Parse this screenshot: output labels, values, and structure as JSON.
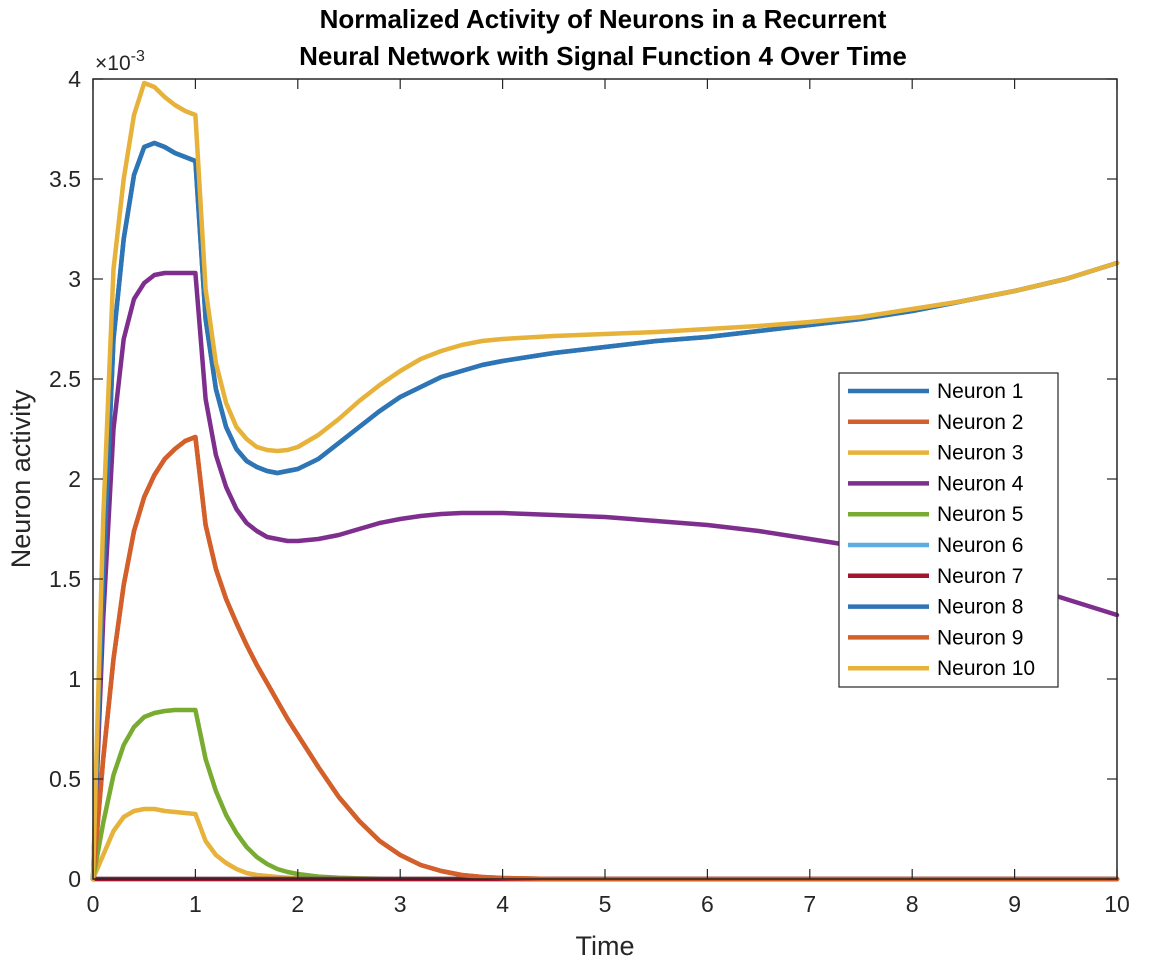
{
  "chart_data": {
    "type": "line",
    "title_lines": [
      "Normalized Activity of Neurons in a Recurrent",
      "Neural Network with Signal Function 4 Over Time"
    ],
    "xlabel": "Time",
    "ylabel": "Neuron activity",
    "y_exponent_label": "×10",
    "y_exponent_power": "-3",
    "xlim": [
      0,
      10
    ],
    "ylim": [
      0,
      4
    ],
    "y_scale_note": "values in units of 1e-3",
    "xticks": [
      "0",
      "1",
      "2",
      "3",
      "4",
      "5",
      "6",
      "7",
      "8",
      "9",
      "10"
    ],
    "yticks": [
      "0",
      "0.5",
      "1",
      "1.5",
      "2",
      "2.5",
      "3",
      "3.5",
      "4"
    ],
    "grid": false,
    "legend_position": "right",
    "series": [
      {
        "name": "Neuron 1",
        "color": "#2E75B6",
        "points": [
          [
            0,
            0
          ],
          [
            0.1,
            1.5
          ],
          [
            0.2,
            2.7
          ],
          [
            0.3,
            3.2
          ],
          [
            0.4,
            3.52
          ],
          [
            0.5,
            3.66
          ],
          [
            0.6,
            3.68
          ],
          [
            0.7,
            3.66
          ],
          [
            0.8,
            3.63
          ],
          [
            0.9,
            3.61
          ],
          [
            1.0,
            3.59
          ],
          [
            1.1,
            2.8
          ],
          [
            1.2,
            2.45
          ],
          [
            1.3,
            2.26
          ],
          [
            1.4,
            2.15
          ],
          [
            1.5,
            2.09
          ],
          [
            1.6,
            2.06
          ],
          [
            1.7,
            2.04
          ],
          [
            1.8,
            2.03
          ],
          [
            1.9,
            2.04
          ],
          [
            2.0,
            2.05
          ],
          [
            2.2,
            2.1
          ],
          [
            2.4,
            2.18
          ],
          [
            2.6,
            2.26
          ],
          [
            2.8,
            2.34
          ],
          [
            3.0,
            2.41
          ],
          [
            3.2,
            2.46
          ],
          [
            3.4,
            2.51
          ],
          [
            3.6,
            2.54
          ],
          [
            3.8,
            2.57
          ],
          [
            4.0,
            2.59
          ],
          [
            4.5,
            2.63
          ],
          [
            5.0,
            2.66
          ],
          [
            5.5,
            2.69
          ],
          [
            6.0,
            2.71
          ],
          [
            6.5,
            2.74
          ],
          [
            7.0,
            2.77
          ],
          [
            7.5,
            2.8
          ],
          [
            8.0,
            2.84
          ],
          [
            8.5,
            2.89
          ],
          [
            9.0,
            2.94
          ],
          [
            9.5,
            3.0
          ],
          [
            10.0,
            3.08
          ]
        ]
      },
      {
        "name": "Neuron 2",
        "color": "#D35F2A",
        "points": [
          [
            0,
            0
          ],
          [
            0.1,
            0.6
          ],
          [
            0.2,
            1.1
          ],
          [
            0.3,
            1.47
          ],
          [
            0.4,
            1.74
          ],
          [
            0.5,
            1.91
          ],
          [
            0.6,
            2.02
          ],
          [
            0.7,
            2.1
          ],
          [
            0.8,
            2.15
          ],
          [
            0.9,
            2.19
          ],
          [
            1.0,
            2.21
          ],
          [
            1.1,
            1.77
          ],
          [
            1.2,
            1.55
          ],
          [
            1.3,
            1.4
          ],
          [
            1.4,
            1.28
          ],
          [
            1.5,
            1.17
          ],
          [
            1.6,
            1.07
          ],
          [
            1.7,
            0.98
          ],
          [
            1.8,
            0.89
          ],
          [
            1.9,
            0.8
          ],
          [
            2.0,
            0.72
          ],
          [
            2.2,
            0.56
          ],
          [
            2.4,
            0.41
          ],
          [
            2.6,
            0.29
          ],
          [
            2.8,
            0.19
          ],
          [
            3.0,
            0.12
          ],
          [
            3.2,
            0.07
          ],
          [
            3.4,
            0.04
          ],
          [
            3.6,
            0.02
          ],
          [
            3.8,
            0.01
          ],
          [
            4.0,
            0.005
          ],
          [
            4.5,
            0.0
          ],
          [
            10.0,
            0.0
          ]
        ]
      },
      {
        "name": "Neuron 3",
        "color": "#E6B23A",
        "points": [
          [
            0,
            0
          ],
          [
            0.1,
            0.12
          ],
          [
            0.2,
            0.24
          ],
          [
            0.3,
            0.31
          ],
          [
            0.4,
            0.34
          ],
          [
            0.5,
            0.35
          ],
          [
            0.6,
            0.35
          ],
          [
            0.7,
            0.34
          ],
          [
            0.8,
            0.335
          ],
          [
            0.9,
            0.33
          ],
          [
            1.0,
            0.325
          ],
          [
            1.1,
            0.19
          ],
          [
            1.2,
            0.12
          ],
          [
            1.3,
            0.08
          ],
          [
            1.4,
            0.05
          ],
          [
            1.5,
            0.03
          ],
          [
            1.6,
            0.02
          ],
          [
            1.8,
            0.01
          ],
          [
            2.0,
            0.003
          ],
          [
            2.5,
            0.0
          ],
          [
            10.0,
            0.0
          ]
        ]
      },
      {
        "name": "Neuron 4",
        "color": "#7E2F8E",
        "points": [
          [
            0,
            0
          ],
          [
            0.1,
            1.3
          ],
          [
            0.2,
            2.25
          ],
          [
            0.3,
            2.7
          ],
          [
            0.4,
            2.9
          ],
          [
            0.5,
            2.98
          ],
          [
            0.6,
            3.02
          ],
          [
            0.7,
            3.03
          ],
          [
            0.8,
            3.03
          ],
          [
            0.9,
            3.03
          ],
          [
            1.0,
            3.03
          ],
          [
            1.1,
            2.4
          ],
          [
            1.2,
            2.12
          ],
          [
            1.3,
            1.96
          ],
          [
            1.4,
            1.85
          ],
          [
            1.5,
            1.78
          ],
          [
            1.6,
            1.74
          ],
          [
            1.7,
            1.71
          ],
          [
            1.8,
            1.7
          ],
          [
            1.9,
            1.69
          ],
          [
            2.0,
            1.69
          ],
          [
            2.2,
            1.7
          ],
          [
            2.4,
            1.72
          ],
          [
            2.6,
            1.75
          ],
          [
            2.8,
            1.78
          ],
          [
            3.0,
            1.8
          ],
          [
            3.2,
            1.815
          ],
          [
            3.4,
            1.825
          ],
          [
            3.6,
            1.83
          ],
          [
            3.8,
            1.83
          ],
          [
            4.0,
            1.83
          ],
          [
            4.5,
            1.82
          ],
          [
            5.0,
            1.81
          ],
          [
            5.5,
            1.79
          ],
          [
            6.0,
            1.77
          ],
          [
            6.5,
            1.74
          ],
          [
            7.0,
            1.7
          ],
          [
            7.5,
            1.66
          ],
          [
            8.0,
            1.61
          ],
          [
            8.5,
            1.55
          ],
          [
            9.0,
            1.48
          ],
          [
            9.5,
            1.4
          ],
          [
            10.0,
            1.32
          ]
        ]
      },
      {
        "name": "Neuron 5",
        "color": "#77AC30",
        "points": [
          [
            0,
            0
          ],
          [
            0.1,
            0.28
          ],
          [
            0.2,
            0.52
          ],
          [
            0.3,
            0.67
          ],
          [
            0.4,
            0.76
          ],
          [
            0.5,
            0.81
          ],
          [
            0.6,
            0.83
          ],
          [
            0.7,
            0.84
          ],
          [
            0.8,
            0.845
          ],
          [
            0.9,
            0.845
          ],
          [
            1.0,
            0.845
          ],
          [
            1.1,
            0.6
          ],
          [
            1.2,
            0.44
          ],
          [
            1.3,
            0.32
          ],
          [
            1.4,
            0.23
          ],
          [
            1.5,
            0.16
          ],
          [
            1.6,
            0.11
          ],
          [
            1.7,
            0.075
          ],
          [
            1.8,
            0.05
          ],
          [
            1.9,
            0.035
          ],
          [
            2.0,
            0.025
          ],
          [
            2.2,
            0.012
          ],
          [
            2.4,
            0.006
          ],
          [
            2.6,
            0.003
          ],
          [
            3.0,
            0.0
          ],
          [
            10.0,
            0.0
          ]
        ]
      },
      {
        "name": "Neuron 6",
        "color": "#5DADE2",
        "points": [
          [
            0,
            0
          ],
          [
            10.0,
            0.0
          ]
        ]
      },
      {
        "name": "Neuron 7",
        "color": "#A2142F",
        "points": [
          [
            0,
            0
          ],
          [
            10.0,
            0.0
          ]
        ]
      },
      {
        "name": "Neuron 8",
        "color": "#2E75B6",
        "points": [
          [
            0,
            0
          ],
          [
            0.1,
            1.5
          ],
          [
            0.2,
            2.7
          ],
          [
            0.3,
            3.2
          ],
          [
            0.4,
            3.52
          ],
          [
            0.5,
            3.66
          ],
          [
            0.6,
            3.68
          ],
          [
            0.7,
            3.66
          ],
          [
            0.8,
            3.63
          ],
          [
            0.9,
            3.61
          ],
          [
            1.0,
            3.59
          ],
          [
            1.1,
            2.8
          ],
          [
            1.2,
            2.45
          ],
          [
            1.3,
            2.26
          ],
          [
            1.4,
            2.15
          ],
          [
            1.5,
            2.09
          ],
          [
            1.6,
            2.06
          ],
          [
            1.7,
            2.04
          ],
          [
            1.8,
            2.03
          ],
          [
            1.9,
            2.04
          ],
          [
            2.0,
            2.05
          ],
          [
            2.2,
            2.1
          ],
          [
            2.4,
            2.18
          ],
          [
            2.6,
            2.26
          ],
          [
            2.8,
            2.34
          ],
          [
            3.0,
            2.41
          ],
          [
            3.2,
            2.46
          ],
          [
            3.4,
            2.51
          ],
          [
            3.6,
            2.54
          ],
          [
            3.8,
            2.57
          ],
          [
            4.0,
            2.59
          ],
          [
            4.5,
            2.63
          ],
          [
            5.0,
            2.66
          ],
          [
            5.5,
            2.69
          ],
          [
            6.0,
            2.71
          ],
          [
            6.5,
            2.74
          ],
          [
            7.0,
            2.77
          ],
          [
            7.5,
            2.8
          ],
          [
            8.0,
            2.84
          ],
          [
            8.5,
            2.89
          ],
          [
            9.0,
            2.94
          ],
          [
            9.5,
            3.0
          ],
          [
            10.0,
            3.08
          ]
        ]
      },
      {
        "name": "Neuron 9",
        "color": "#D35F2A",
        "points": [
          [
            0,
            0
          ],
          [
            0.1,
            0.6
          ],
          [
            0.2,
            1.1
          ],
          [
            0.3,
            1.47
          ],
          [
            0.4,
            1.74
          ],
          [
            0.5,
            1.91
          ],
          [
            0.6,
            2.02
          ],
          [
            0.7,
            2.1
          ],
          [
            0.8,
            2.15
          ],
          [
            0.9,
            2.19
          ],
          [
            1.0,
            2.21
          ],
          [
            1.1,
            1.77
          ],
          [
            1.2,
            1.55
          ],
          [
            1.3,
            1.4
          ],
          [
            1.4,
            1.28
          ],
          [
            1.5,
            1.17
          ],
          [
            1.6,
            1.07
          ],
          [
            1.7,
            0.98
          ],
          [
            1.8,
            0.89
          ],
          [
            1.9,
            0.8
          ],
          [
            2.0,
            0.72
          ],
          [
            2.2,
            0.56
          ],
          [
            2.4,
            0.41
          ],
          [
            2.6,
            0.29
          ],
          [
            2.8,
            0.19
          ],
          [
            3.0,
            0.12
          ],
          [
            3.2,
            0.07
          ],
          [
            3.4,
            0.04
          ],
          [
            3.6,
            0.02
          ],
          [
            3.8,
            0.01
          ],
          [
            4.0,
            0.005
          ],
          [
            4.5,
            0.0
          ],
          [
            10.0,
            0.0
          ]
        ]
      },
      {
        "name": "Neuron 10",
        "color": "#E6B23A",
        "points": [
          [
            0,
            0
          ],
          [
            0.1,
            1.8
          ],
          [
            0.2,
            3.05
          ],
          [
            0.3,
            3.5
          ],
          [
            0.4,
            3.82
          ],
          [
            0.5,
            3.98
          ],
          [
            0.6,
            3.96
          ],
          [
            0.7,
            3.91
          ],
          [
            0.8,
            3.87
          ],
          [
            0.9,
            3.84
          ],
          [
            1.0,
            3.82
          ],
          [
            1.1,
            2.95
          ],
          [
            1.2,
            2.58
          ],
          [
            1.3,
            2.38
          ],
          [
            1.4,
            2.26
          ],
          [
            1.5,
            2.2
          ],
          [
            1.6,
            2.16
          ],
          [
            1.7,
            2.145
          ],
          [
            1.8,
            2.14
          ],
          [
            1.9,
            2.145
          ],
          [
            2.0,
            2.16
          ],
          [
            2.2,
            2.22
          ],
          [
            2.4,
            2.3
          ],
          [
            2.6,
            2.39
          ],
          [
            2.8,
            2.47
          ],
          [
            3.0,
            2.54
          ],
          [
            3.2,
            2.6
          ],
          [
            3.4,
            2.64
          ],
          [
            3.6,
            2.67
          ],
          [
            3.8,
            2.69
          ],
          [
            4.0,
            2.7
          ],
          [
            4.5,
            2.715
          ],
          [
            5.0,
            2.725
          ],
          [
            5.5,
            2.735
          ],
          [
            6.0,
            2.75
          ],
          [
            6.5,
            2.765
          ],
          [
            7.0,
            2.785
          ],
          [
            7.5,
            2.81
          ],
          [
            8.0,
            2.85
          ],
          [
            8.5,
            2.89
          ],
          [
            9.0,
            2.94
          ],
          [
            9.5,
            3.0
          ],
          [
            10.0,
            3.08
          ]
        ]
      }
    ]
  }
}
